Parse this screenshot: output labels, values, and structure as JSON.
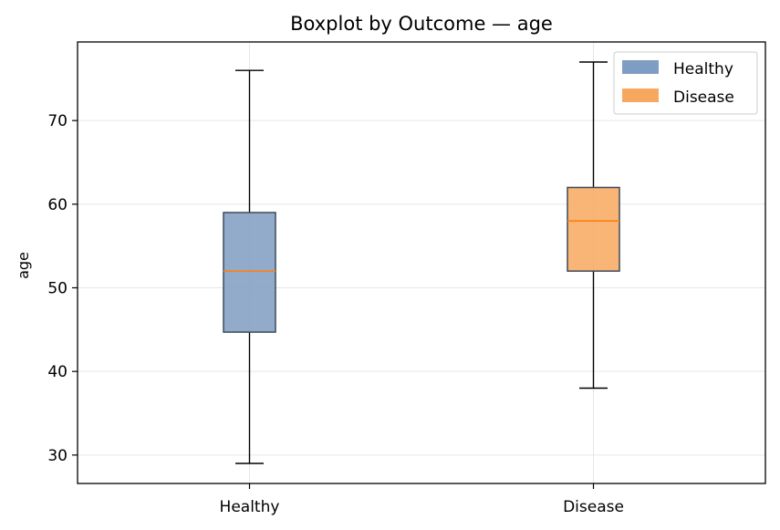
{
  "chart_data": {
    "type": "boxplot",
    "title": "Boxplot by Outcome — age",
    "xlabel": "",
    "ylabel": "age",
    "ylim": [
      26.6,
      79.4
    ],
    "yticks": [
      30,
      40,
      50,
      60,
      70
    ],
    "grid": true,
    "legend_position": "top-right",
    "categories": [
      "Healthy",
      "Disease"
    ],
    "series": [
      {
        "name": "Healthy",
        "color": "#7f9cc2",
        "median_color": "#ff7f0e",
        "whisker_low": 29,
        "q1": 44.7,
        "median": 52,
        "q3": 59,
        "whisker_high": 76
      },
      {
        "name": "Disease",
        "color": "#f8a85e",
        "median_color": "#ff7f0e",
        "whisker_low": 38,
        "q1": 52,
        "median": 58,
        "q3": 62,
        "whisker_high": 77
      }
    ]
  }
}
